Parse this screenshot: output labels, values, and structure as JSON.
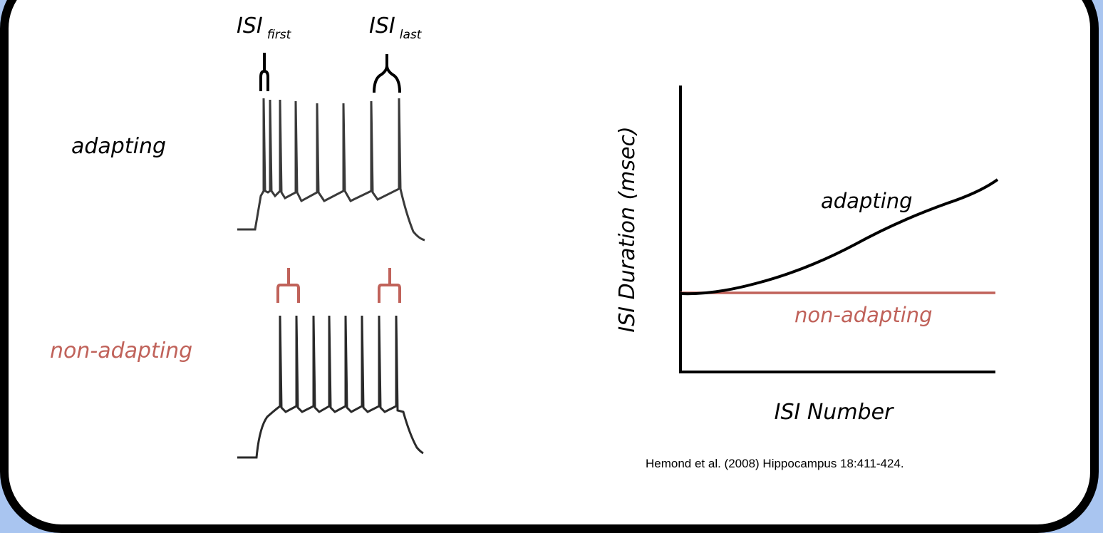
{
  "labels": {
    "isi_first_main": "ISI",
    "isi_first_sub": "first",
    "isi_last_main": "ISI",
    "isi_last_sub": "last",
    "adapting": "adapting",
    "non_adapting": "non-adapting"
  },
  "chart": {
    "y_label": "ISI Duration (msec)",
    "x_label": "ISI Number",
    "series_adapting": "adapting",
    "series_non_adapting": "non-adapting"
  },
  "citation": "Hemond et al. (2008) Hippocampus 18:411-424.",
  "colors": {
    "background": "#a9c5f0",
    "panel": "#ffffff",
    "adapting": "#000000",
    "non_adapting": "#c0625a",
    "trace": "#3a3a3a"
  }
}
